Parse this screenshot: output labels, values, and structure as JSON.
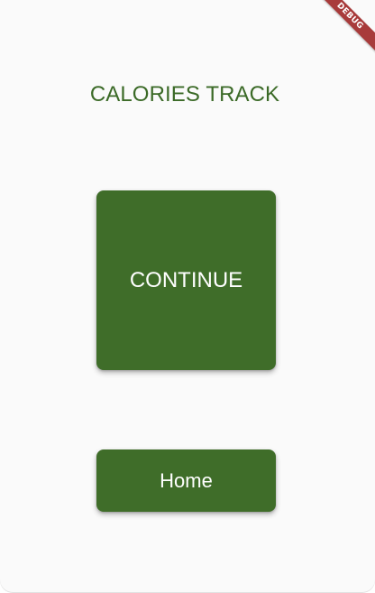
{
  "app": {
    "title": "CALORIES TRACK",
    "debug_banner": "DEBUG"
  },
  "actions": {
    "continue_label": "CONTINUE",
    "home_label": "Home"
  },
  "colors": {
    "primary": "#3f6d29",
    "title": "#3b6a27",
    "background": "#fafafa",
    "debug_ribbon": "#a83b3b"
  }
}
